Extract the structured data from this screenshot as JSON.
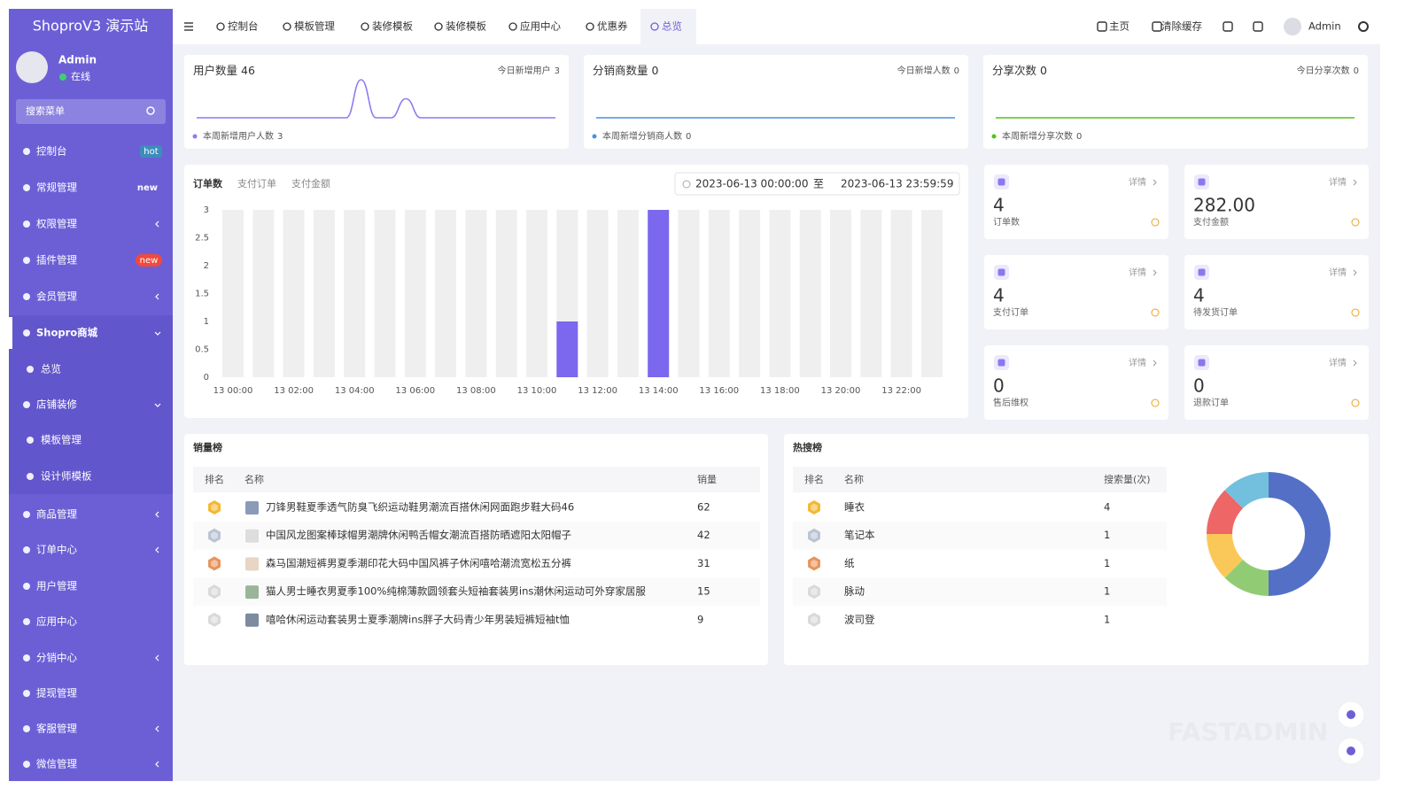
{
  "sidebar": {
    "title": "ShoproV3 演示站",
    "user": "Admin",
    "status": "在线",
    "search": "搜索菜单",
    "menu": [
      {
        "label": "控制台",
        "badge": "hot",
        "badge_color": "#3c8dbc"
      },
      {
        "label": "常规管理",
        "badge": "new"
      },
      {
        "label": "权限管理",
        "arrow": "left"
      },
      {
        "label": "插件管理",
        "badge": "new",
        "badge_color": "#ef4a3c"
      },
      {
        "label": "会员管理",
        "arrow": "left"
      },
      {
        "label": "Shopro商城",
        "arrow": "down"
      },
      {
        "label": "总览",
        "level": 2
      },
      {
        "label": "店铺装修",
        "arrow": "down"
      },
      {
        "label": "模板管理",
        "level": 2
      },
      {
        "label": "设计师模板",
        "level": 2
      },
      {
        "label": "商品管理",
        "arrow": "left"
      },
      {
        "label": "订单中心",
        "arrow": "left"
      },
      {
        "label": "用户管理"
      },
      {
        "label": "应用中心"
      },
      {
        "label": "分销中心",
        "arrow": "left"
      },
      {
        "label": "提现管理"
      },
      {
        "label": "客服管理",
        "arrow": "left"
      },
      {
        "label": "微信管理",
        "arrow": "left"
      }
    ]
  },
  "topbar": {
    "tabs": [
      "控制台",
      "模板管理",
      "装修模板",
      "装修模板",
      "应用中心",
      "优惠券",
      "总览"
    ],
    "active_tab": 6,
    "links": [
      "主页",
      "清除缓存"
    ],
    "user": "Admin"
  },
  "summary": [
    {
      "title": "用户数量",
      "total": 46,
      "today_label": "今日新增用户",
      "today": 3,
      "week_label": "本周新增用户人数",
      "week": 3,
      "color": "#8b7cf0",
      "sparkline": [
        0,
        0,
        0,
        0,
        0,
        0,
        0,
        0,
        0,
        0,
        0,
        2,
        0,
        0,
        1,
        0,
        0,
        0,
        0,
        0,
        0,
        0,
        0,
        0,
        0
      ]
    },
    {
      "title": "分销商数量",
      "total": 0,
      "today_label": "今日新增人数",
      "today": 0,
      "week_label": "本周新增分销商人数",
      "week": 0,
      "color": "#4a90e2",
      "sparkline": [
        0,
        0,
        0,
        0,
        0,
        0,
        0,
        0,
        0,
        0,
        0,
        0,
        0,
        0,
        0,
        0,
        0,
        0,
        0,
        0,
        0,
        0,
        0,
        0,
        0
      ]
    },
    {
      "title": "分享次数",
      "total": 0,
      "today_label": "今日分享次数",
      "today": 0,
      "week_label": "本周新增分享次数",
      "week": 0,
      "color": "#52c41a",
      "sparkline": [
        0,
        0,
        0,
        0,
        0,
        0,
        0,
        0,
        0,
        0,
        0,
        0,
        0,
        0,
        0,
        0,
        0,
        0,
        0,
        0,
        0,
        0,
        0,
        0,
        0
      ]
    }
  ],
  "orders_chart": {
    "type": "bar",
    "tabs": [
      "订单数",
      "支付订单",
      "支付金额"
    ],
    "active_tab": 0,
    "date_start": "2023-06-13 00:00:00",
    "date_sep": "至",
    "date_end": "2023-06-13 23:59:59",
    "categories": [
      "13 00:00",
      null,
      "13 02:00",
      null,
      "13 04:00",
      null,
      "13 06:00",
      null,
      "13 08:00",
      null,
      "13 10:00",
      null,
      "13 12:00",
      null,
      "13 14:00",
      null,
      "13 16:00",
      null,
      "13 18:00",
      null,
      "13 20:00",
      null,
      "13 22:00",
      null
    ],
    "values": [
      0,
      0,
      0,
      0,
      0,
      0,
      0,
      0,
      0,
      0,
      0,
      1,
      0,
      0,
      3,
      0,
      0,
      0,
      0,
      0,
      0,
      0,
      0,
      0
    ],
    "color": "#7b68ee",
    "ylim": [
      0,
      3
    ],
    "yticks": [
      0,
      0.5,
      1,
      1.5,
      2,
      2.5,
      3
    ]
  },
  "stats": [
    {
      "label": "订单数",
      "value": 4,
      "link": "详情"
    },
    {
      "label": "支付金额",
      "value": 282,
      "value_label": "282.00",
      "link": "详情"
    },
    {
      "label": "支付订单",
      "value": 4,
      "link": "详情"
    },
    {
      "label": "待发货订单",
      "value": 4,
      "link": "详情"
    },
    {
      "label": "售后维权",
      "value": 0,
      "link": "详情"
    },
    {
      "label": "退款订单",
      "value": 0,
      "link": "详情"
    }
  ],
  "sales_rank": {
    "title": "销量榜",
    "columns": [
      "排名",
      "名称",
      "销量"
    ],
    "rows": [
      {
        "name": "刀锋男鞋夏季透气防臭飞织运动鞋男潮流百搭休闲网面跑步鞋大码46",
        "count": 62
      },
      {
        "name": "中国风龙图案棒球帽男潮牌休闲鸭舌帽女潮流百搭防晒遮阳太阳帽子",
        "count": 42
      },
      {
        "name": "森马国潮短裤男夏季潮印花大码中国风裤子休闲嘻哈潮流宽松五分裤",
        "count": 31
      },
      {
        "name": "猫人男士睡衣男夏季100%纯棉薄款圆领套头短袖套装男ins潮休闲运动可外穿家居服",
        "count": 15
      },
      {
        "name": "嘻哈休闲运动套装男士夏季潮牌ins胖子大码青少年男装短裤短袖t恤",
        "count": 9
      }
    ]
  },
  "hot_search": {
    "title": "热搜榜",
    "columns": [
      "排名",
      "名称",
      "搜索量(次)"
    ],
    "rows": [
      {
        "name": "睡衣",
        "count": 4
      },
      {
        "name": "笔记本",
        "count": 1
      },
      {
        "name": "纸",
        "count": 1
      },
      {
        "name": "脉动",
        "count": 1
      },
      {
        "name": "波司登",
        "count": 1
      }
    ],
    "colors": [
      "#5470c6",
      "#91cc75",
      "#fac858",
      "#ee6666",
      "#73c0de"
    ]
  },
  "watermark": "FASTADMIN"
}
